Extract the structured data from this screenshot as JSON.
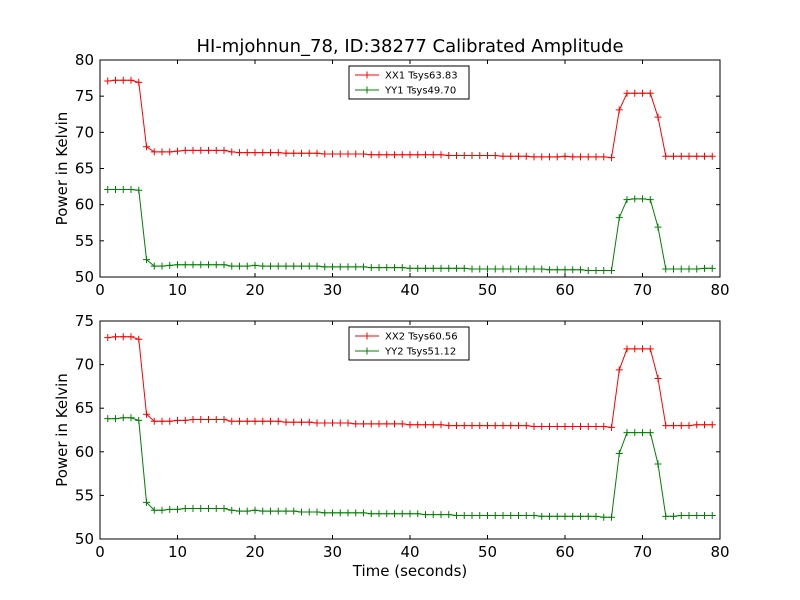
{
  "figure": {
    "title": "HI-mjohnun_78, ID:38277 Calibrated Amplitude"
  },
  "chart_data": [
    {
      "type": "line",
      "ylabel": "Power in Kelvin",
      "xlabel": "",
      "xlim": [
        0,
        80
      ],
      "ylim": [
        50,
        80
      ],
      "xticks": [
        "0",
        "10",
        "20",
        "30",
        "40",
        "50",
        "60",
        "70",
        "80"
      ],
      "yticks": [
        "50",
        "55",
        "60",
        "65",
        "70",
        "75",
        "80"
      ],
      "legend_placement": "top-center",
      "grid": false,
      "x": [
        1,
        2,
        3,
        4,
        5,
        6,
        7,
        8,
        9,
        10,
        11,
        12,
        13,
        14,
        15,
        16,
        17,
        18,
        19,
        20,
        21,
        22,
        23,
        24,
        25,
        26,
        27,
        28,
        29,
        30,
        31,
        32,
        33,
        34,
        35,
        36,
        37,
        38,
        39,
        40,
        41,
        42,
        43,
        44,
        45,
        46,
        47,
        48,
        49,
        50,
        51,
        52,
        53,
        54,
        55,
        56,
        57,
        58,
        59,
        60,
        61,
        62,
        63,
        64,
        65,
        66,
        67,
        68,
        69,
        70,
        71,
        72,
        73,
        74,
        75,
        76,
        77,
        78,
        79
      ],
      "series": [
        {
          "name": "XX1 Tsys63.83",
          "color": "#ff0000",
          "values": [
            77.1,
            77.2,
            77.2,
            77.2,
            76.9,
            68.0,
            67.3,
            67.3,
            67.3,
            67.4,
            67.5,
            67.5,
            67.5,
            67.5,
            67.5,
            67.5,
            67.3,
            67.2,
            67.2,
            67.2,
            67.2,
            67.2,
            67.2,
            67.1,
            67.1,
            67.1,
            67.1,
            67.1,
            67.0,
            67.0,
            67.0,
            67.0,
            67.0,
            67.0,
            66.9,
            66.9,
            66.9,
            66.9,
            66.9,
            66.9,
            66.9,
            66.9,
            66.9,
            66.9,
            66.8,
            66.8,
            66.8,
            66.8,
            66.8,
            66.8,
            66.8,
            66.7,
            66.7,
            66.7,
            66.7,
            66.6,
            66.6,
            66.6,
            66.6,
            66.7,
            66.6,
            66.6,
            66.6,
            66.6,
            66.6,
            66.5,
            73.1,
            75.4,
            75.4,
            75.4,
            75.4,
            72.1,
            66.7,
            66.7,
            66.7,
            66.7,
            66.7,
            66.7,
            66.7
          ]
        },
        {
          "name": "YY1 Tsys49.70",
          "color": "#008000",
          "values": [
            62.1,
            62.1,
            62.1,
            62.1,
            62.0,
            52.4,
            51.5,
            51.5,
            51.6,
            51.7,
            51.7,
            51.7,
            51.7,
            51.7,
            51.7,
            51.7,
            51.5,
            51.5,
            51.5,
            51.6,
            51.5,
            51.5,
            51.5,
            51.5,
            51.5,
            51.5,
            51.5,
            51.5,
            51.4,
            51.4,
            51.4,
            51.4,
            51.4,
            51.4,
            51.3,
            51.3,
            51.3,
            51.3,
            51.3,
            51.2,
            51.2,
            51.2,
            51.2,
            51.2,
            51.2,
            51.2,
            51.2,
            51.1,
            51.1,
            51.1,
            51.1,
            51.1,
            51.1,
            51.1,
            51.1,
            51.1,
            51.1,
            51.0,
            51.0,
            51.0,
            51.0,
            51.0,
            50.9,
            50.9,
            50.9,
            50.9,
            58.2,
            60.7,
            60.8,
            60.8,
            60.7,
            56.9,
            51.1,
            51.1,
            51.1,
            51.1,
            51.1,
            51.2,
            51.2
          ]
        }
      ]
    },
    {
      "type": "line",
      "ylabel": "Power in Kelvin",
      "xlabel": "Time (seconds)",
      "xlim": [
        0,
        80
      ],
      "ylim": [
        50,
        75
      ],
      "xticks": [
        "0",
        "10",
        "20",
        "30",
        "40",
        "50",
        "60",
        "70",
        "80"
      ],
      "yticks": [
        "50",
        "55",
        "60",
        "65",
        "70",
        "75"
      ],
      "legend_placement": "top-center",
      "grid": false,
      "x": [
        1,
        2,
        3,
        4,
        5,
        6,
        7,
        8,
        9,
        10,
        11,
        12,
        13,
        14,
        15,
        16,
        17,
        18,
        19,
        20,
        21,
        22,
        23,
        24,
        25,
        26,
        27,
        28,
        29,
        30,
        31,
        32,
        33,
        34,
        35,
        36,
        37,
        38,
        39,
        40,
        41,
        42,
        43,
        44,
        45,
        46,
        47,
        48,
        49,
        50,
        51,
        52,
        53,
        54,
        55,
        56,
        57,
        58,
        59,
        60,
        61,
        62,
        63,
        64,
        65,
        66,
        67,
        68,
        69,
        70,
        71,
        72,
        73,
        74,
        75,
        76,
        77,
        78,
        79
      ],
      "series": [
        {
          "name": "XX2 Tsys60.56",
          "color": "#ff0000",
          "values": [
            73.1,
            73.2,
            73.2,
            73.2,
            72.9,
            64.3,
            63.5,
            63.5,
            63.5,
            63.6,
            63.6,
            63.7,
            63.7,
            63.7,
            63.7,
            63.7,
            63.5,
            63.5,
            63.5,
            63.5,
            63.5,
            63.5,
            63.5,
            63.4,
            63.4,
            63.4,
            63.4,
            63.3,
            63.3,
            63.3,
            63.3,
            63.3,
            63.2,
            63.2,
            63.2,
            63.2,
            63.2,
            63.2,
            63.2,
            63.1,
            63.1,
            63.1,
            63.1,
            63.1,
            63.0,
            63.0,
            63.0,
            63.0,
            63.0,
            63.0,
            63.0,
            63.0,
            63.0,
            63.0,
            63.0,
            62.9,
            62.9,
            62.9,
            62.9,
            62.9,
            62.9,
            62.9,
            62.9,
            62.9,
            62.9,
            62.8,
            69.4,
            71.8,
            71.8,
            71.8,
            71.8,
            68.4,
            63.0,
            63.0,
            63.0,
            63.0,
            63.1,
            63.1,
            63.1
          ]
        },
        {
          "name": "YY2 Tsys51.12",
          "color": "#008000",
          "values": [
            63.8,
            63.8,
            63.9,
            63.9,
            63.6,
            54.2,
            53.3,
            53.3,
            53.4,
            53.4,
            53.5,
            53.5,
            53.5,
            53.5,
            53.5,
            53.5,
            53.3,
            53.2,
            53.2,
            53.3,
            53.2,
            53.2,
            53.2,
            53.2,
            53.2,
            53.1,
            53.1,
            53.1,
            53.0,
            53.0,
            53.0,
            53.0,
            53.0,
            53.0,
            52.9,
            52.9,
            52.9,
            52.9,
            52.9,
            52.9,
            52.9,
            52.8,
            52.8,
            52.8,
            52.8,
            52.7,
            52.7,
            52.7,
            52.7,
            52.7,
            52.7,
            52.7,
            52.7,
            52.7,
            52.7,
            52.7,
            52.6,
            52.6,
            52.6,
            52.6,
            52.6,
            52.6,
            52.6,
            52.6,
            52.5,
            52.5,
            59.8,
            62.2,
            62.2,
            62.2,
            62.2,
            58.6,
            52.6,
            52.6,
            52.7,
            52.7,
            52.7,
            52.7,
            52.7
          ]
        }
      ]
    }
  ]
}
